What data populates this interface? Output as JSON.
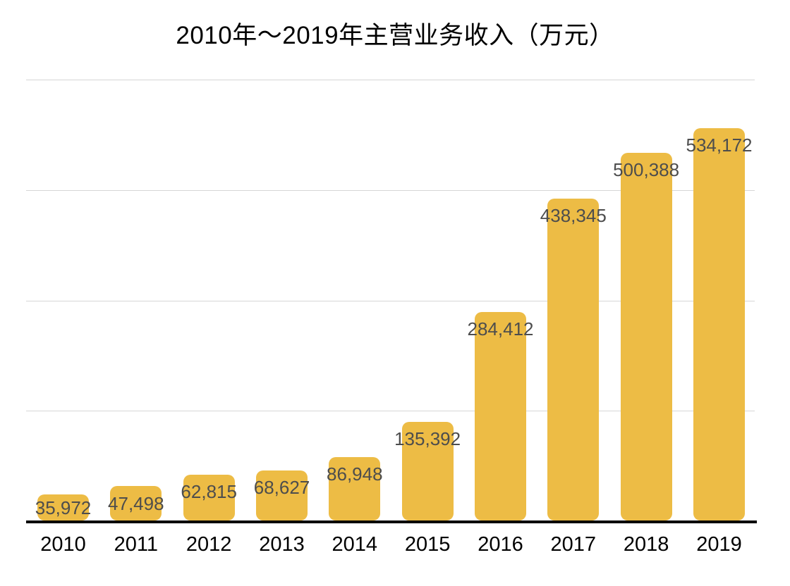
{
  "chart_data": {
    "type": "bar",
    "title": "2010年～2019年主营业务收入（万元）",
    "categories": [
      "2010",
      "2011",
      "2012",
      "2013",
      "2014",
      "2015",
      "2016",
      "2017",
      "2018",
      "2019"
    ],
    "values": [
      35972,
      47498,
      62815,
      68627,
      86948,
      135392,
      284412,
      438345,
      500388,
      534172
    ],
    "value_labels": [
      "35,972",
      "47,498",
      "62,815",
      "68,627",
      "86,948",
      "135,392",
      "284,412",
      "438,345",
      "500,388",
      "534,172"
    ],
    "xlabel": "",
    "ylabel": "",
    "ylim": [
      0,
      600000
    ],
    "gridline_values": [
      150000,
      300000,
      450000,
      600000
    ],
    "grid": "horizontal-only",
    "y_tick_labels_shown": false,
    "legend": "none",
    "colors": {
      "bar": "#edbc45",
      "value_label": "#4d4d4d",
      "axis_line": "#000000",
      "tick_label": "#000000",
      "gridline": "#d6d6d6",
      "background": "#ffffff",
      "title": "#000000"
    }
  }
}
